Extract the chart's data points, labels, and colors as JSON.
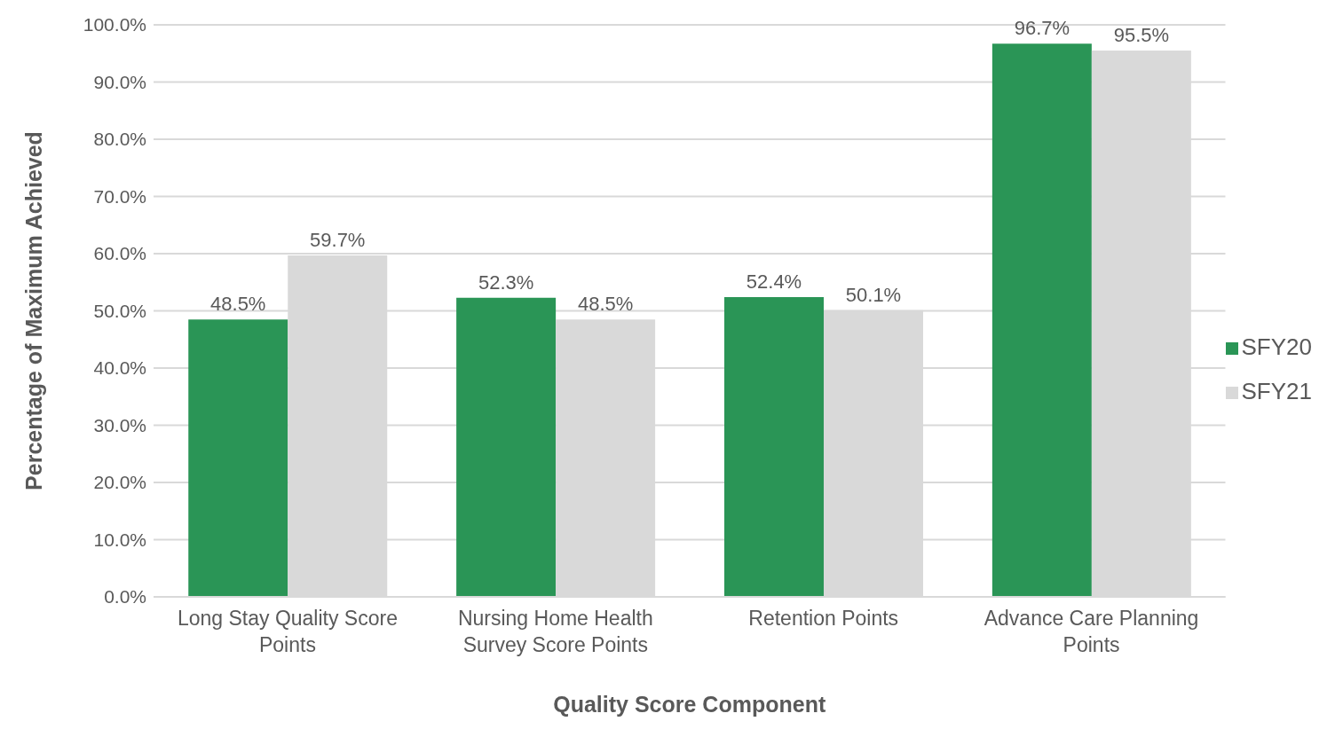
{
  "chart_data": {
    "type": "bar",
    "categories": [
      "Long Stay Quality Score Points",
      "Nursing Home Health Survey Score Points",
      "Retention Points",
      "Advance Care Planning Points"
    ],
    "series": [
      {
        "name": "SFY20",
        "color": "#2a9556",
        "values": [
          48.5,
          52.3,
          52.4,
          96.7
        ],
        "value_labels": [
          "48.5%",
          "52.3%",
          "52.4%",
          "96.7%"
        ]
      },
      {
        "name": "SFY21",
        "color": "#d9d9d9",
        "values": [
          59.7,
          48.5,
          50.1,
          95.5
        ],
        "value_labels": [
          "59.7%",
          "48.5%",
          "50.1%",
          "95.5%"
        ]
      }
    ],
    "xlabel": "Quality Score Component",
    "ylabel": "Percentage of Maximum Achieved",
    "ylim": [
      0,
      100
    ],
    "yticks": [
      {
        "value": 0,
        "label": "0.0%"
      },
      {
        "value": 10,
        "label": "10.0%"
      },
      {
        "value": 20,
        "label": "20.0%"
      },
      {
        "value": 30,
        "label": "30.0%"
      },
      {
        "value": 40,
        "label": "40.0%"
      },
      {
        "value": 50,
        "label": "50.0%"
      },
      {
        "value": 60,
        "label": "60.0%"
      },
      {
        "value": 70,
        "label": "70.0%"
      },
      {
        "value": 80,
        "label": "80.0%"
      },
      {
        "value": 90,
        "label": "90.0%"
      },
      {
        "value": 100,
        "label": "100.0%"
      }
    ],
    "grid": "y",
    "legend": "right"
  }
}
